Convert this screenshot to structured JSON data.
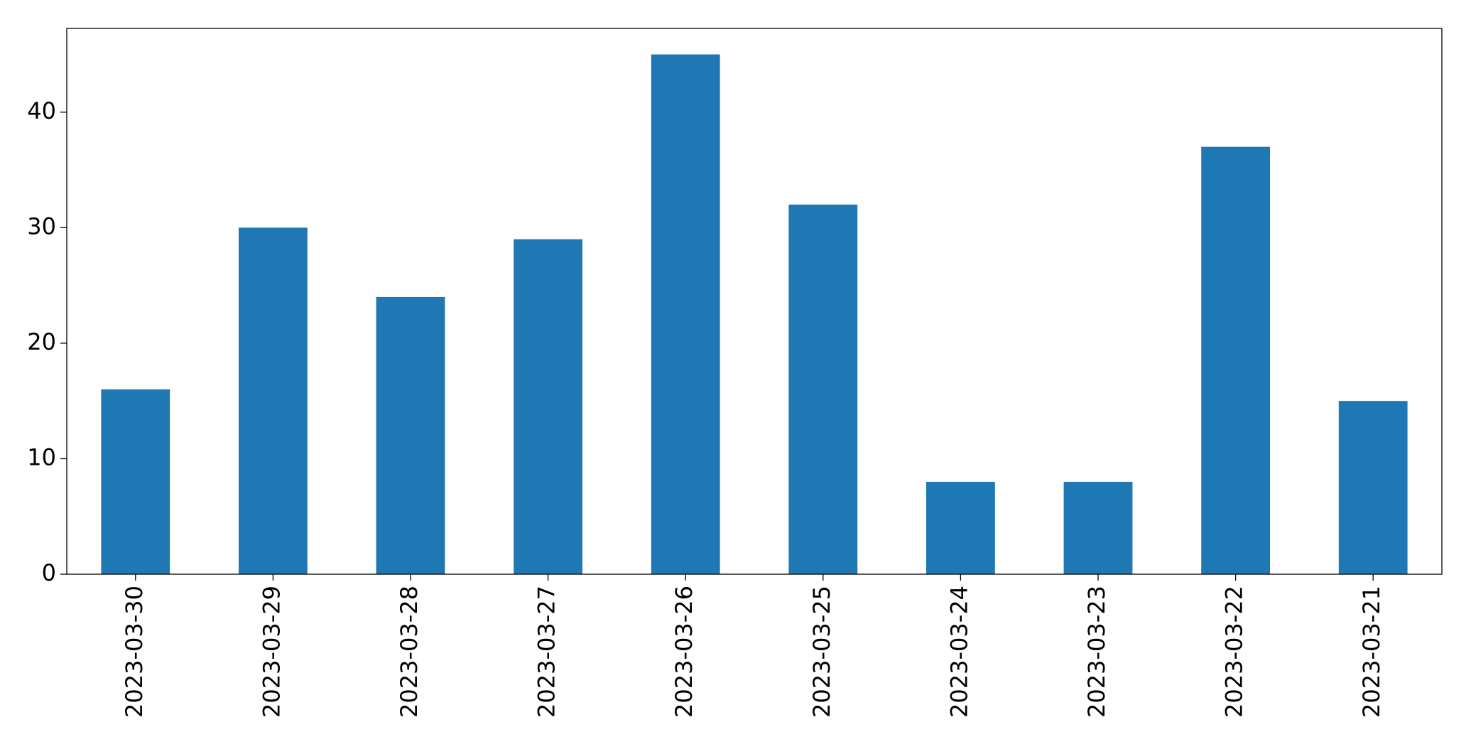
{
  "chart_data": {
    "type": "bar",
    "categories": [
      "2023-03-30",
      "2023-03-29",
      "2023-03-28",
      "2023-03-27",
      "2023-03-26",
      "2023-03-25",
      "2023-03-24",
      "2023-03-23",
      "2023-03-22",
      "2023-03-21"
    ],
    "values": [
      16,
      30,
      24,
      29,
      45,
      32,
      8,
      8,
      37,
      15
    ],
    "color": "#1f77b4",
    "ylim": [
      0,
      47.25
    ],
    "yticks": [
      0,
      10,
      20,
      30,
      40
    ]
  }
}
